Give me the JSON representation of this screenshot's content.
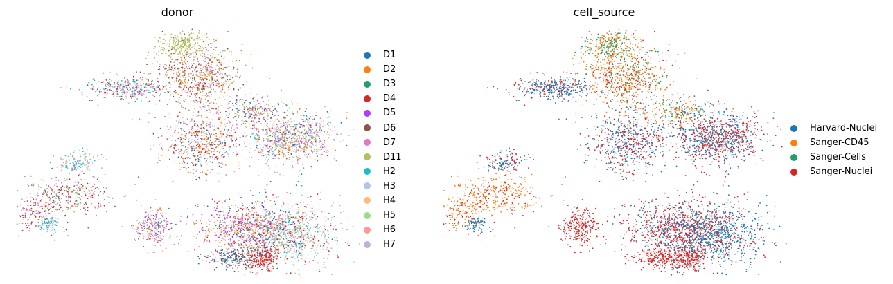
{
  "chart_data": [
    {
      "type": "scatter",
      "title": "donor",
      "xlabel": "",
      "ylabel": "",
      "grid": false,
      "axes_visible": false,
      "legend_placement": "right",
      "categories": [
        "D1",
        "D2",
        "D3",
        "D4",
        "D5",
        "D6",
        "D7",
        "D11",
        "H2",
        "H3",
        "H4",
        "H5",
        "H6",
        "H7"
      ],
      "colors": [
        "#1f77b4",
        "#ff7f0e",
        "#279e68",
        "#d62728",
        "#aa40fc",
        "#8c564b",
        "#e377c2",
        "#b5bd61",
        "#17becf",
        "#aec7e8",
        "#ffbb78",
        "#98df8a",
        "#ff9896",
        "#c5b0d5"
      ]
    },
    {
      "type": "scatter",
      "title": "cell_source",
      "xlabel": "",
      "ylabel": "",
      "grid": false,
      "axes_visible": false,
      "legend_placement": "right",
      "categories": [
        "Harvard-Nuclei",
        "Sanger-CD45",
        "Sanger-Cells",
        "Sanger-Nuclei"
      ],
      "colors": [
        "#1f77b4",
        "#ff7f0e",
        "#279e68",
        "#d62728"
      ]
    }
  ]
}
